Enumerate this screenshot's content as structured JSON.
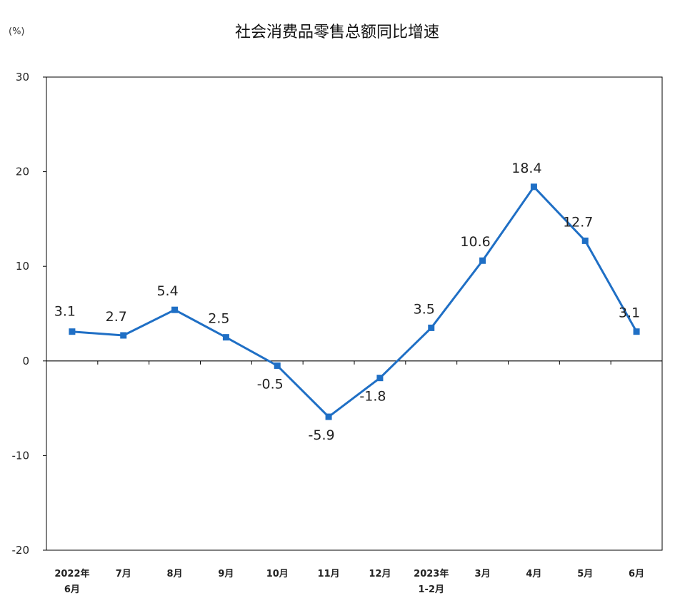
{
  "chart_data": {
    "type": "line",
    "title": "社会消费品零售总额同比增速",
    "unit": "(%)",
    "categories": [
      [
        "2022年",
        "6月"
      ],
      [
        "7月"
      ],
      [
        "8月"
      ],
      [
        "9月"
      ],
      [
        "10月"
      ],
      [
        "11月"
      ],
      [
        "12月"
      ],
      [
        "2023年",
        "1-2月"
      ],
      [
        "3月"
      ],
      [
        "4月"
      ],
      [
        "5月"
      ],
      [
        "6月"
      ]
    ],
    "series": [
      {
        "values": [
          3.1,
          2.7,
          5.4,
          2.5,
          -0.5,
          -5.9,
          -1.8,
          3.5,
          10.6,
          18.4,
          12.7,
          3.1
        ],
        "color": "#1f6fc5"
      }
    ],
    "data_labels": [
      "3.1",
      "2.7",
      "5.4",
      "2.5",
      "-0.5",
      "-5.9",
      "-1.8",
      "3.5",
      "10.6",
      "18.4",
      "12.7",
      "3.1"
    ],
    "yticks": [
      {
        "value": 30,
        "label": "30"
      },
      {
        "value": 20,
        "label": "20"
      },
      {
        "value": 10,
        "label": "10"
      },
      {
        "value": 0,
        "label": "0"
      },
      {
        "value": -10,
        "label": "-10"
      },
      {
        "value": -20,
        "label": "-20"
      }
    ],
    "ylim": [
      -20,
      30
    ],
    "grid": false,
    "legend": "none",
    "line_color": "#1f6fc5"
  }
}
